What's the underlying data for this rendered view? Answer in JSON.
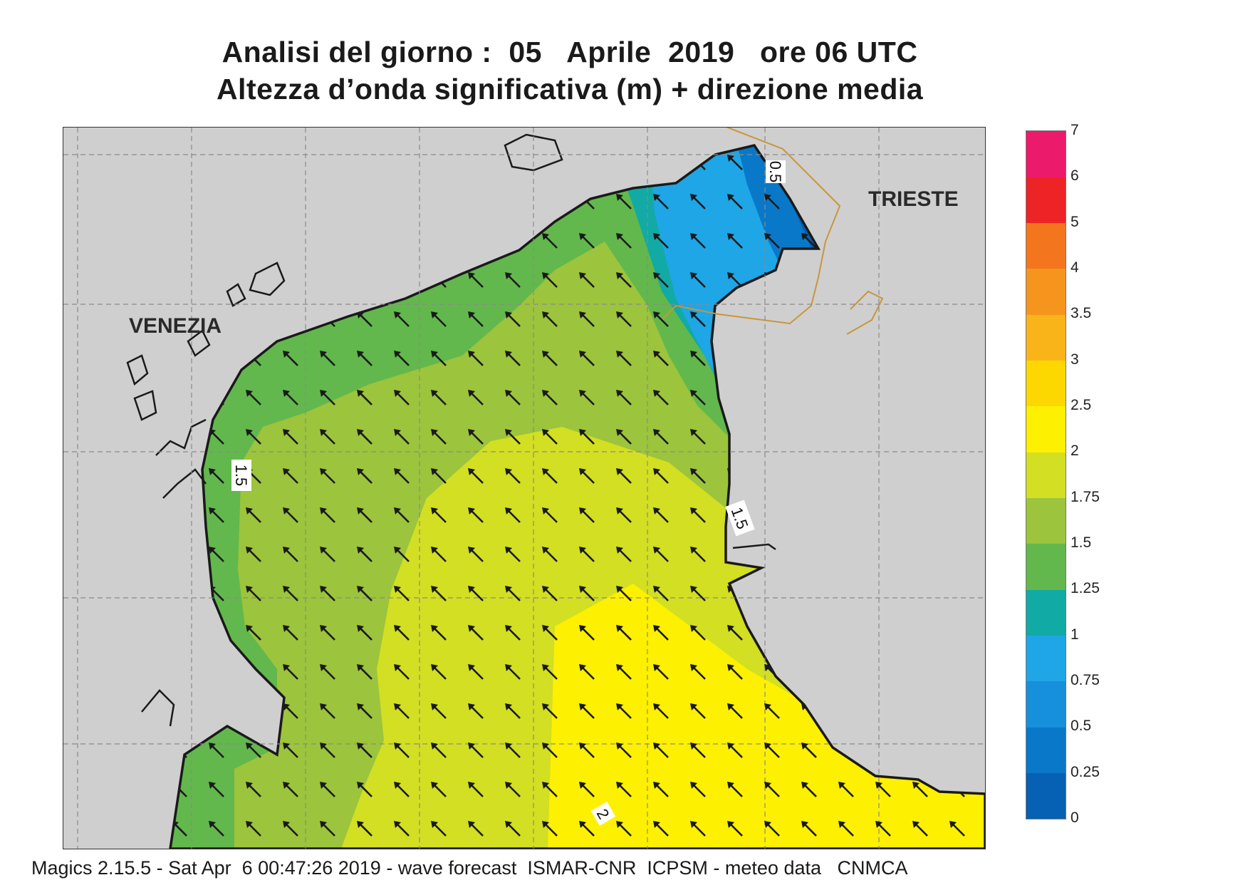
{
  "title": {
    "line1": "Analisi del giorno :  05   Aprile  2019   ore 06 UTC",
    "line2": "Altezza d’onda significativa (m) + direzione media"
  },
  "map": {
    "cities": [
      {
        "key": "venezia",
        "label": "VENEZIA"
      },
      {
        "key": "trieste",
        "label": "TRIESTE"
      }
    ],
    "contour_labels": [
      "0.5",
      "1.5",
      "1.5",
      "2"
    ],
    "mean_direction": "north-west",
    "colors": {
      "land": "#cfcfcf",
      "coast": "#1a1a1a",
      "border": "#c8963c",
      "grid": "#8a8a8a"
    }
  },
  "legend": {
    "levels": [
      "0",
      "0.25",
      "0.5",
      "0.75",
      "1",
      "1.25",
      "1.5",
      "1.75",
      "2",
      "2.5",
      "3",
      "3.5",
      "4",
      "5",
      "6",
      "7"
    ],
    "colors": [
      "#0660b4",
      "#0a78c8",
      "#1690da",
      "#1ea6e6",
      "#12aaa4",
      "#62b84c",
      "#9cc43c",
      "#d2df22",
      "#fdf000",
      "#fcd800",
      "#f9b41a",
      "#f6951e",
      "#f3761e",
      "#ec2426",
      "#ec1a6a"
    ]
  },
  "footer": "Magics 2.15.5 - Sat Apr  6 00:47:26 2019 - wave forecast  ISMAR-CNR  ICPSM - meteo data   CNMCA"
}
